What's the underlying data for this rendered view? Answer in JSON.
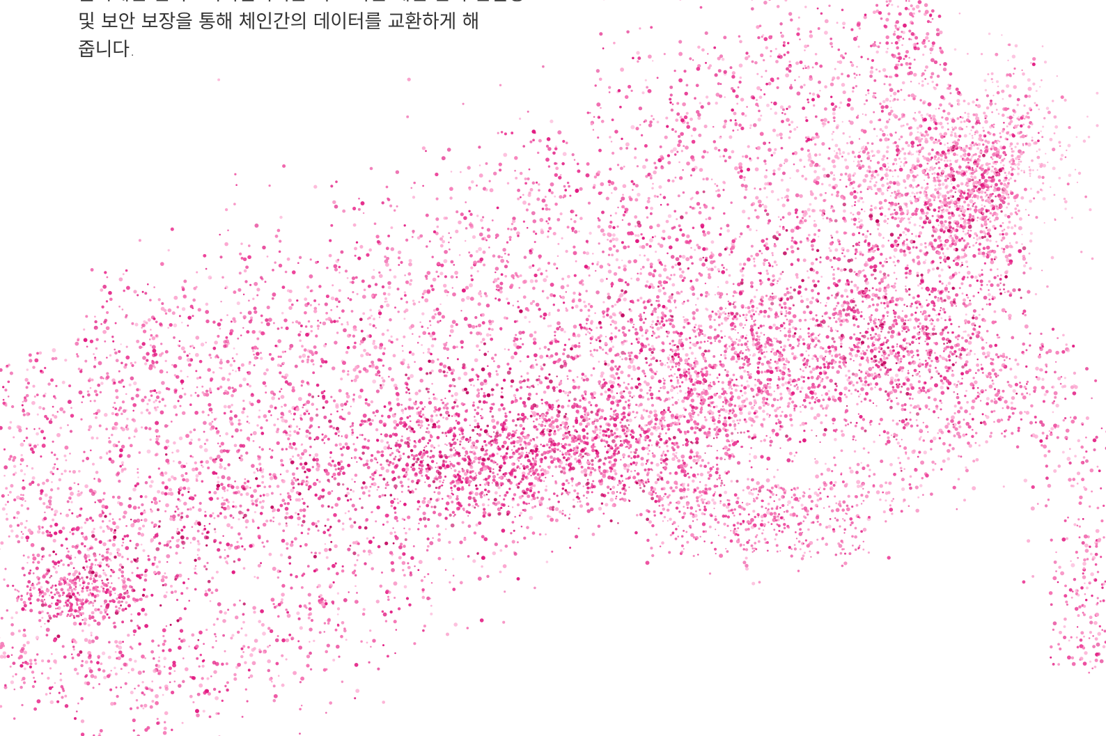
{
  "hero": {
    "text_lines": [
      "블록체인 인터오퍼러빌리티는 서로 다른 체인 간의 연결성",
      "및 보안 보장을 통해 체인간의 데이터를 교환하게 해",
      "줍니다."
    ]
  },
  "visual": {
    "icon": "pink-particle-wave-icon",
    "palette": {
      "deep": "#c0005a",
      "strong": "#e21b82",
      "main": "#ec3f98",
      "soft": "#f56fb1",
      "pale": "#fca3ce"
    }
  }
}
